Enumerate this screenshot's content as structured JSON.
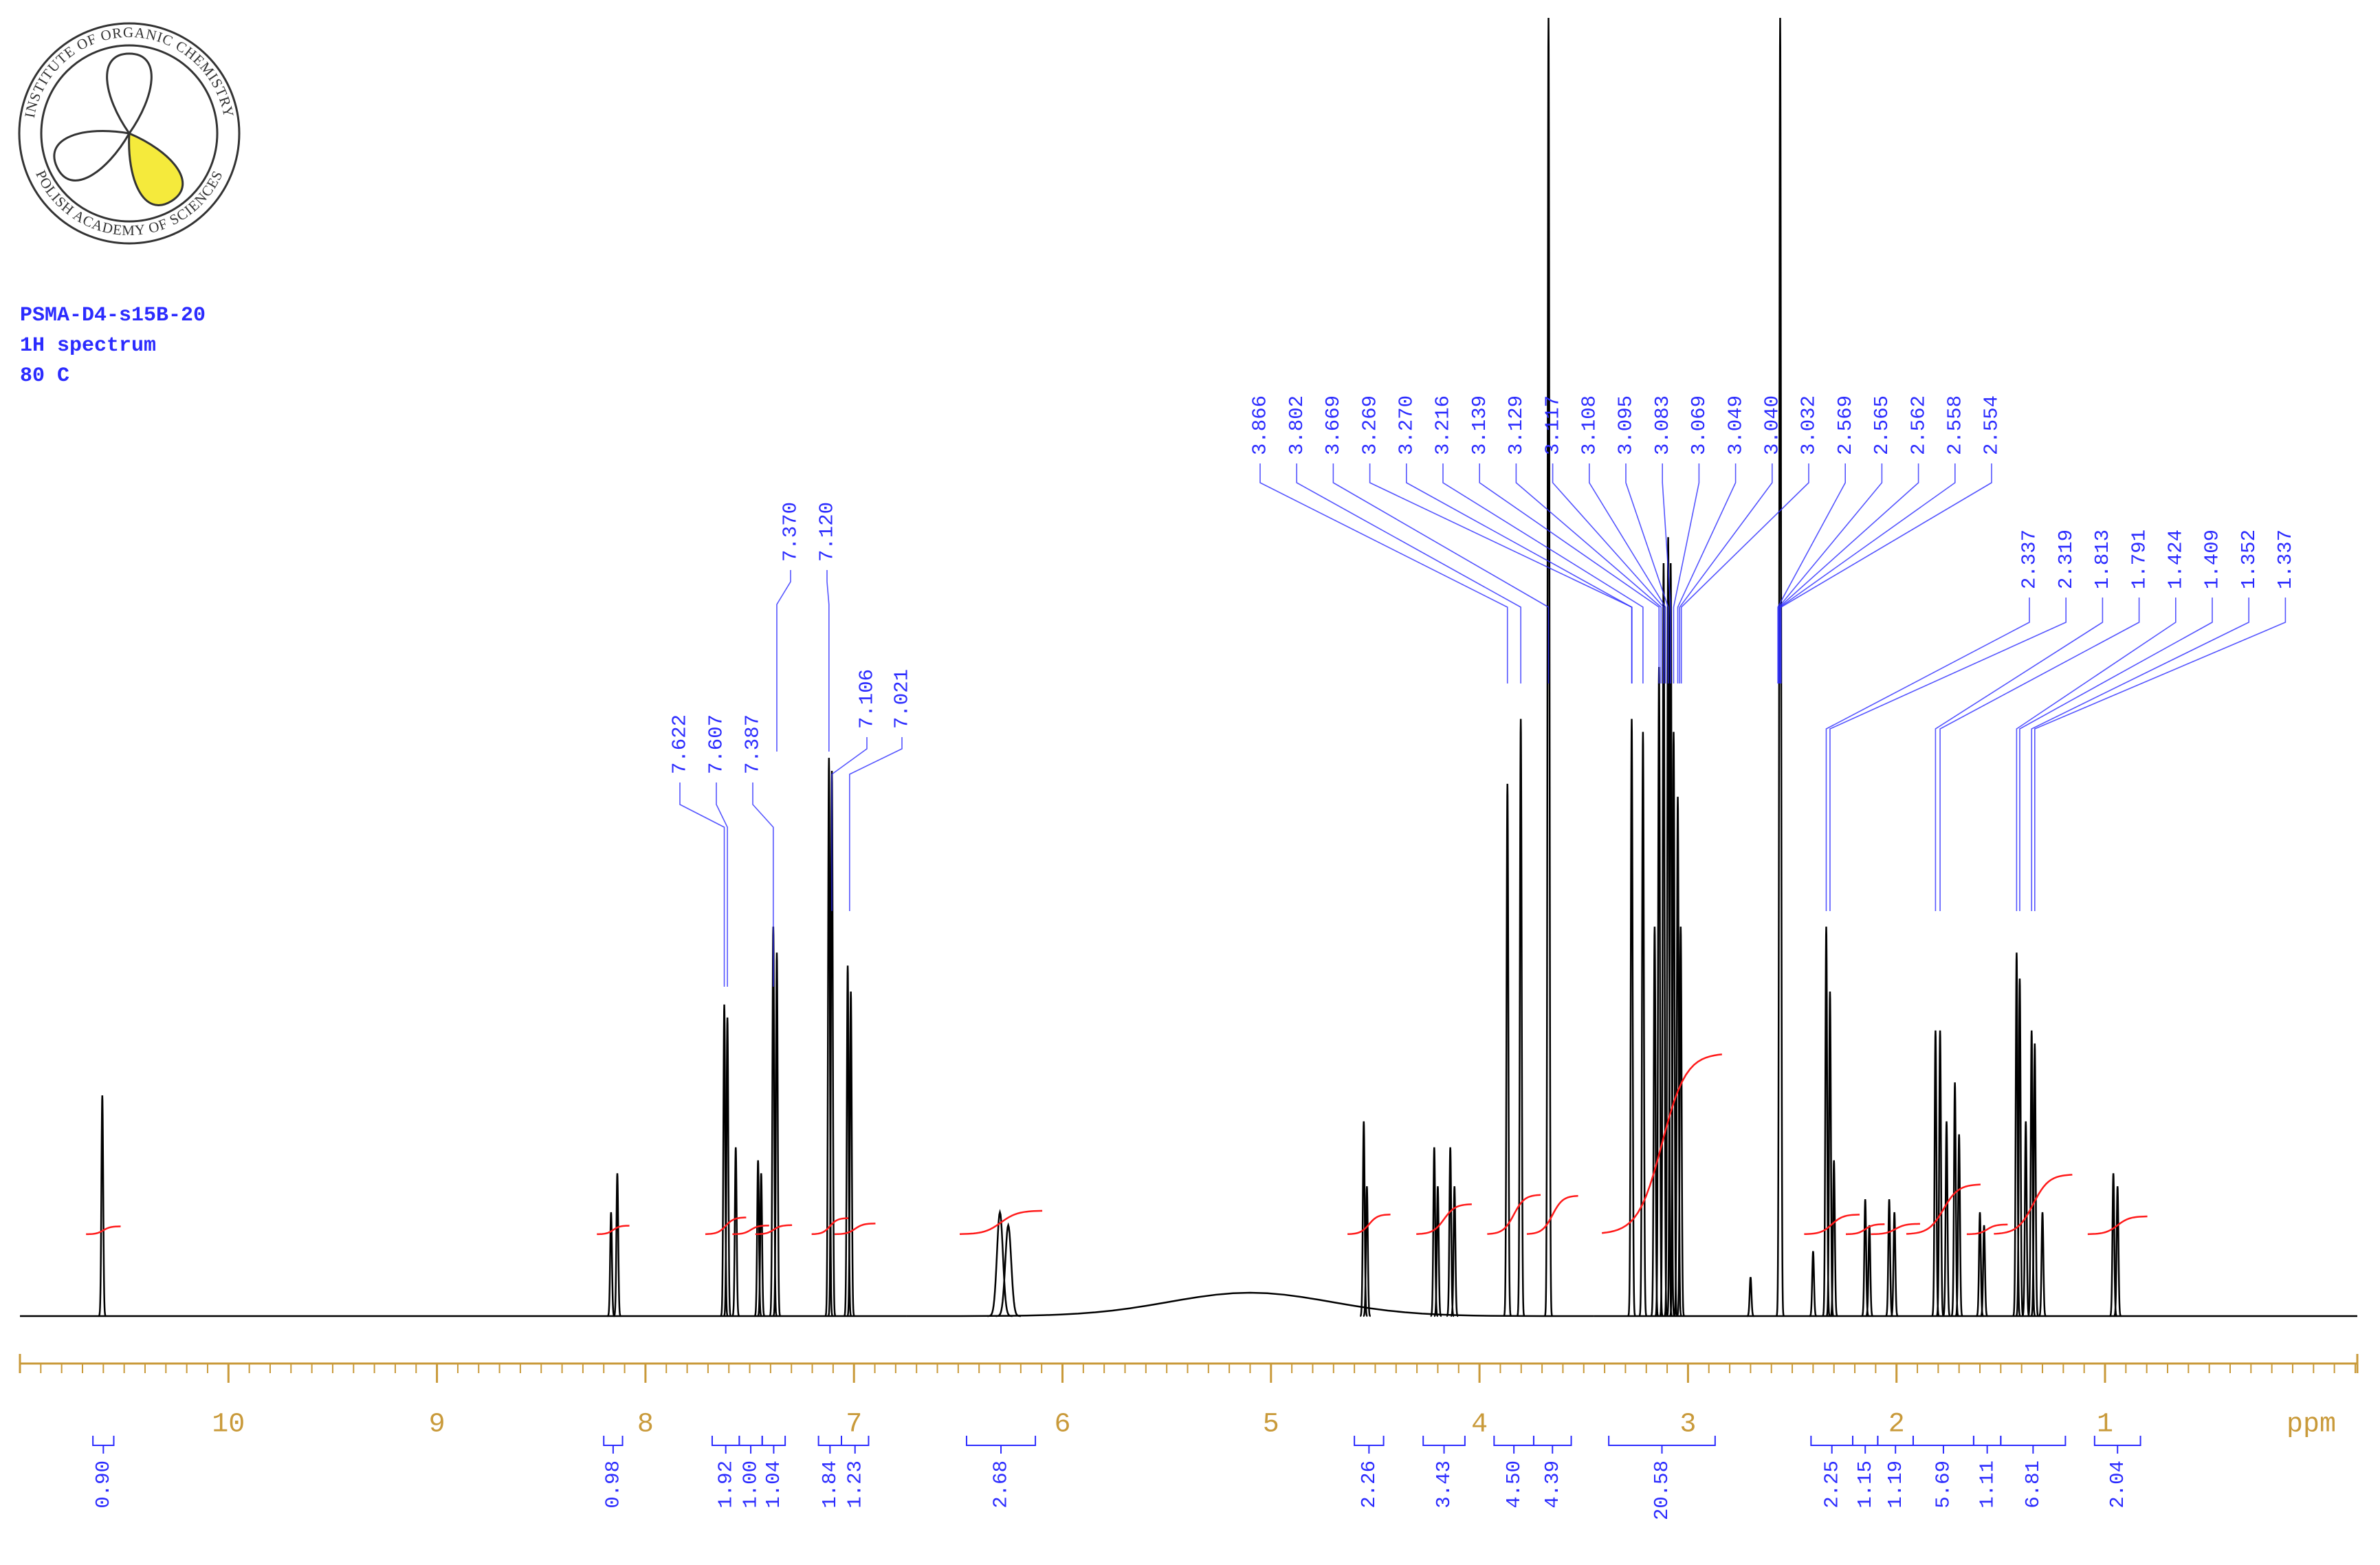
{
  "logo": {
    "top_text": "INSTITUTE OF ORGANIC CHEMISTRY",
    "bottom_text": "POLISH ACADEMY OF SCIENCES"
  },
  "chart_data": {
    "type": "nmr",
    "title_lines": [
      "PSMA-D4-s15B-20",
      "1H spectrum",
      "80 C"
    ],
    "x_label": "ppm",
    "xlim": [
      11.0,
      -0.21
    ],
    "xticks": [
      10,
      9,
      8,
      7,
      6,
      5,
      4,
      3,
      2,
      1
    ],
    "xminor_step": 0.1,
    "ylim": [
      0,
      100
    ],
    "color": "#000000",
    "label_color": "#2b2bff",
    "integral_color": "#ff1a1a",
    "axis_color": "#c99a3a",
    "linewidth": 0.006,
    "peaks": [
      {
        "ppm": 10.605,
        "height": 17
      },
      {
        "ppm": 8.165,
        "height": 8
      },
      {
        "ppm": 8.135,
        "height": 11
      },
      {
        "ppm": 7.622,
        "height": 24
      },
      {
        "ppm": 7.607,
        "height": 23
      },
      {
        "ppm": 7.567,
        "height": 13
      },
      {
        "ppm": 7.46,
        "height": 12
      },
      {
        "ppm": 7.445,
        "height": 11
      },
      {
        "ppm": 7.387,
        "height": 30
      },
      {
        "ppm": 7.37,
        "height": 28
      },
      {
        "ppm": 7.12,
        "height": 43
      },
      {
        "ppm": 7.106,
        "height": 42
      },
      {
        "ppm": 7.03,
        "height": 27
      },
      {
        "ppm": 7.015,
        "height": 25
      },
      {
        "ppm": 6.3,
        "height": 8,
        "width": 0.02
      },
      {
        "ppm": 6.26,
        "height": 7,
        "width": 0.02
      },
      {
        "ppm": 5.1,
        "height": 1.8,
        "width": 0.55
      },
      {
        "ppm": 4.555,
        "height": 15
      },
      {
        "ppm": 4.54,
        "height": 10
      },
      {
        "ppm": 4.217,
        "height": 13
      },
      {
        "ppm": 4.2,
        "height": 10
      },
      {
        "ppm": 4.14,
        "height": 13
      },
      {
        "ppm": 4.12,
        "height": 10
      },
      {
        "ppm": 3.866,
        "height": 41
      },
      {
        "ppm": 3.802,
        "height": 46
      },
      {
        "ppm": 3.669,
        "height": 100
      },
      {
        "ppm": 3.27,
        "height": 46
      },
      {
        "ppm": 3.216,
        "height": 45
      },
      {
        "ppm": 3.16,
        "height": 30
      },
      {
        "ppm": 3.139,
        "height": 50
      },
      {
        "ppm": 3.117,
        "height": 58
      },
      {
        "ppm": 3.095,
        "height": 60
      },
      {
        "ppm": 3.083,
        "height": 58
      },
      {
        "ppm": 3.069,
        "height": 45
      },
      {
        "ppm": 3.049,
        "height": 40
      },
      {
        "ppm": 3.035,
        "height": 30
      },
      {
        "ppm": 2.7,
        "height": 3
      },
      {
        "ppm": 2.558,
        "height": 100
      },
      {
        "ppm": 2.4,
        "height": 5
      },
      {
        "ppm": 2.337,
        "height": 30
      },
      {
        "ppm": 2.319,
        "height": 25
      },
      {
        "ppm": 2.3,
        "height": 12
      },
      {
        "ppm": 2.15,
        "height": 9
      },
      {
        "ppm": 2.13,
        "height": 7
      },
      {
        "ppm": 2.035,
        "height": 9
      },
      {
        "ppm": 2.01,
        "height": 8
      },
      {
        "ppm": 1.813,
        "height": 22
      },
      {
        "ppm": 1.791,
        "height": 22
      },
      {
        "ppm": 1.76,
        "height": 15
      },
      {
        "ppm": 1.72,
        "height": 18
      },
      {
        "ppm": 1.7,
        "height": 14
      },
      {
        "ppm": 1.6,
        "height": 8
      },
      {
        "ppm": 1.58,
        "height": 7
      },
      {
        "ppm": 1.424,
        "height": 28
      },
      {
        "ppm": 1.409,
        "height": 26
      },
      {
        "ppm": 1.38,
        "height": 15
      },
      {
        "ppm": 1.352,
        "height": 22
      },
      {
        "ppm": 1.337,
        "height": 21
      },
      {
        "ppm": 1.3,
        "height": 8
      },
      {
        "ppm": 0.96,
        "height": 11
      },
      {
        "ppm": 0.94,
        "height": 10
      }
    ],
    "peak_labels": [
      7.622,
      7.607,
      7.387,
      {
        "value": 7.37,
        "label": "7.370"
      },
      {
        "value": 7.12,
        "label": "7.120"
      },
      7.106,
      7.021,
      3.866,
      3.802,
      3.669,
      3.269,
      {
        "value": 3.27,
        "label": "3.270"
      },
      3.216,
      3.139,
      3.129,
      3.117,
      3.108,
      3.095,
      3.083,
      3.069,
      3.049,
      {
        "value": 3.04,
        "label": "3.040"
      },
      3.032,
      2.569,
      2.565,
      2.562,
      2.558,
      2.554,
      2.337,
      2.319,
      1.813,
      1.791,
      1.424,
      1.409,
      1.352,
      1.337
    ],
    "integrals": [
      {
        "range": [
          10.65,
          10.55
        ],
        "value": 0.9,
        "label": "0.90"
      },
      {
        "range": [
          8.2,
          8.11
        ],
        "value": 0.98
      },
      {
        "range": [
          7.68,
          7.55
        ],
        "value": 1.92
      },
      {
        "range": [
          7.55,
          7.44
        ],
        "value": 1,
        "label": "1.00"
      },
      {
        "range": [
          7.44,
          7.33
        ],
        "value": 1.04
      },
      {
        "range": [
          7.17,
          7.06
        ],
        "value": 1.84
      },
      {
        "range": [
          7.06,
          6.93
        ],
        "value": 1.23
      },
      {
        "range": [
          6.46,
          6.13
        ],
        "value": 2.68
      },
      {
        "range": [
          4.6,
          4.46
        ],
        "value": 2.26
      },
      {
        "range": [
          4.27,
          4.07
        ],
        "value": 3.43
      },
      {
        "range": [
          3.93,
          3.74
        ],
        "value": 4.5,
        "label": "4.50"
      },
      {
        "range": [
          3.74,
          3.56
        ],
        "value": 4.39
      },
      {
        "range": [
          3.38,
          2.87
        ],
        "value": 20.58
      },
      {
        "range": [
          2.41,
          2.21
        ],
        "value": 2.25
      },
      {
        "range": [
          2.21,
          2.09
        ],
        "value": 1.15
      },
      {
        "range": [
          2.09,
          1.92
        ],
        "value": 1.19
      },
      {
        "range": [
          1.92,
          1.63
        ],
        "value": 5.69
      },
      {
        "range": [
          1.63,
          1.5
        ],
        "value": 1.11
      },
      {
        "range": [
          1.5,
          1.19
        ],
        "value": 6.81
      },
      {
        "range": [
          1.05,
          0.83
        ],
        "value": 2.04
      }
    ]
  }
}
